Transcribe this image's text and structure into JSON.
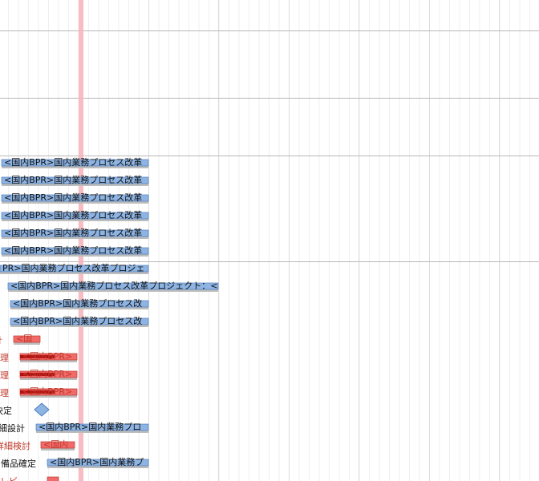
{
  "gantt": {
    "rows": [
      {
        "bar_label": "<国内BPR>国内業務プロセス改革"
      },
      {
        "bar_label": "<国内BPR>国内業務プロセス改革"
      },
      {
        "bar_label": "<国内BPR>国内業務プロセス改革"
      },
      {
        "bar_label": "<国内BPR>国内業務プロセス改革"
      },
      {
        "bar_label": "<国内BPR>国内業務プロセス改革"
      },
      {
        "bar_label": "<国内BPR>国内業務プロセス改革"
      },
      {
        "bar_label": "PR>国内業務プロセス改革プロジェ"
      },
      {
        "bar_label": "<国内BPR>国内業務プロセス改革プロジェクト：<"
      },
      {
        "bar_label": "<国内BPR>国内業務プロセス改"
      },
      {
        "bar_label": "<国内BPR>国内業務プロセス改"
      },
      {
        "label": "計",
        "bar_label": "<国"
      },
      {
        "label": "理",
        "bar_label": "<国内BPR>"
      },
      {
        "label": "理",
        "bar_label": "<国内BPR>"
      },
      {
        "label": "理",
        "bar_label": "<国内BPR>"
      },
      {
        "label": "決定"
      },
      {
        "label": "細設計",
        "bar_label": "<国内BPR>国内業務プロ"
      },
      {
        "label": "詳細検討",
        "bar_label": "<国内"
      },
      {
        "label": "備品確定",
        "bar_label": "<国内BPR>国内業務プ"
      },
      {
        "label": "レビ"
      }
    ]
  }
}
